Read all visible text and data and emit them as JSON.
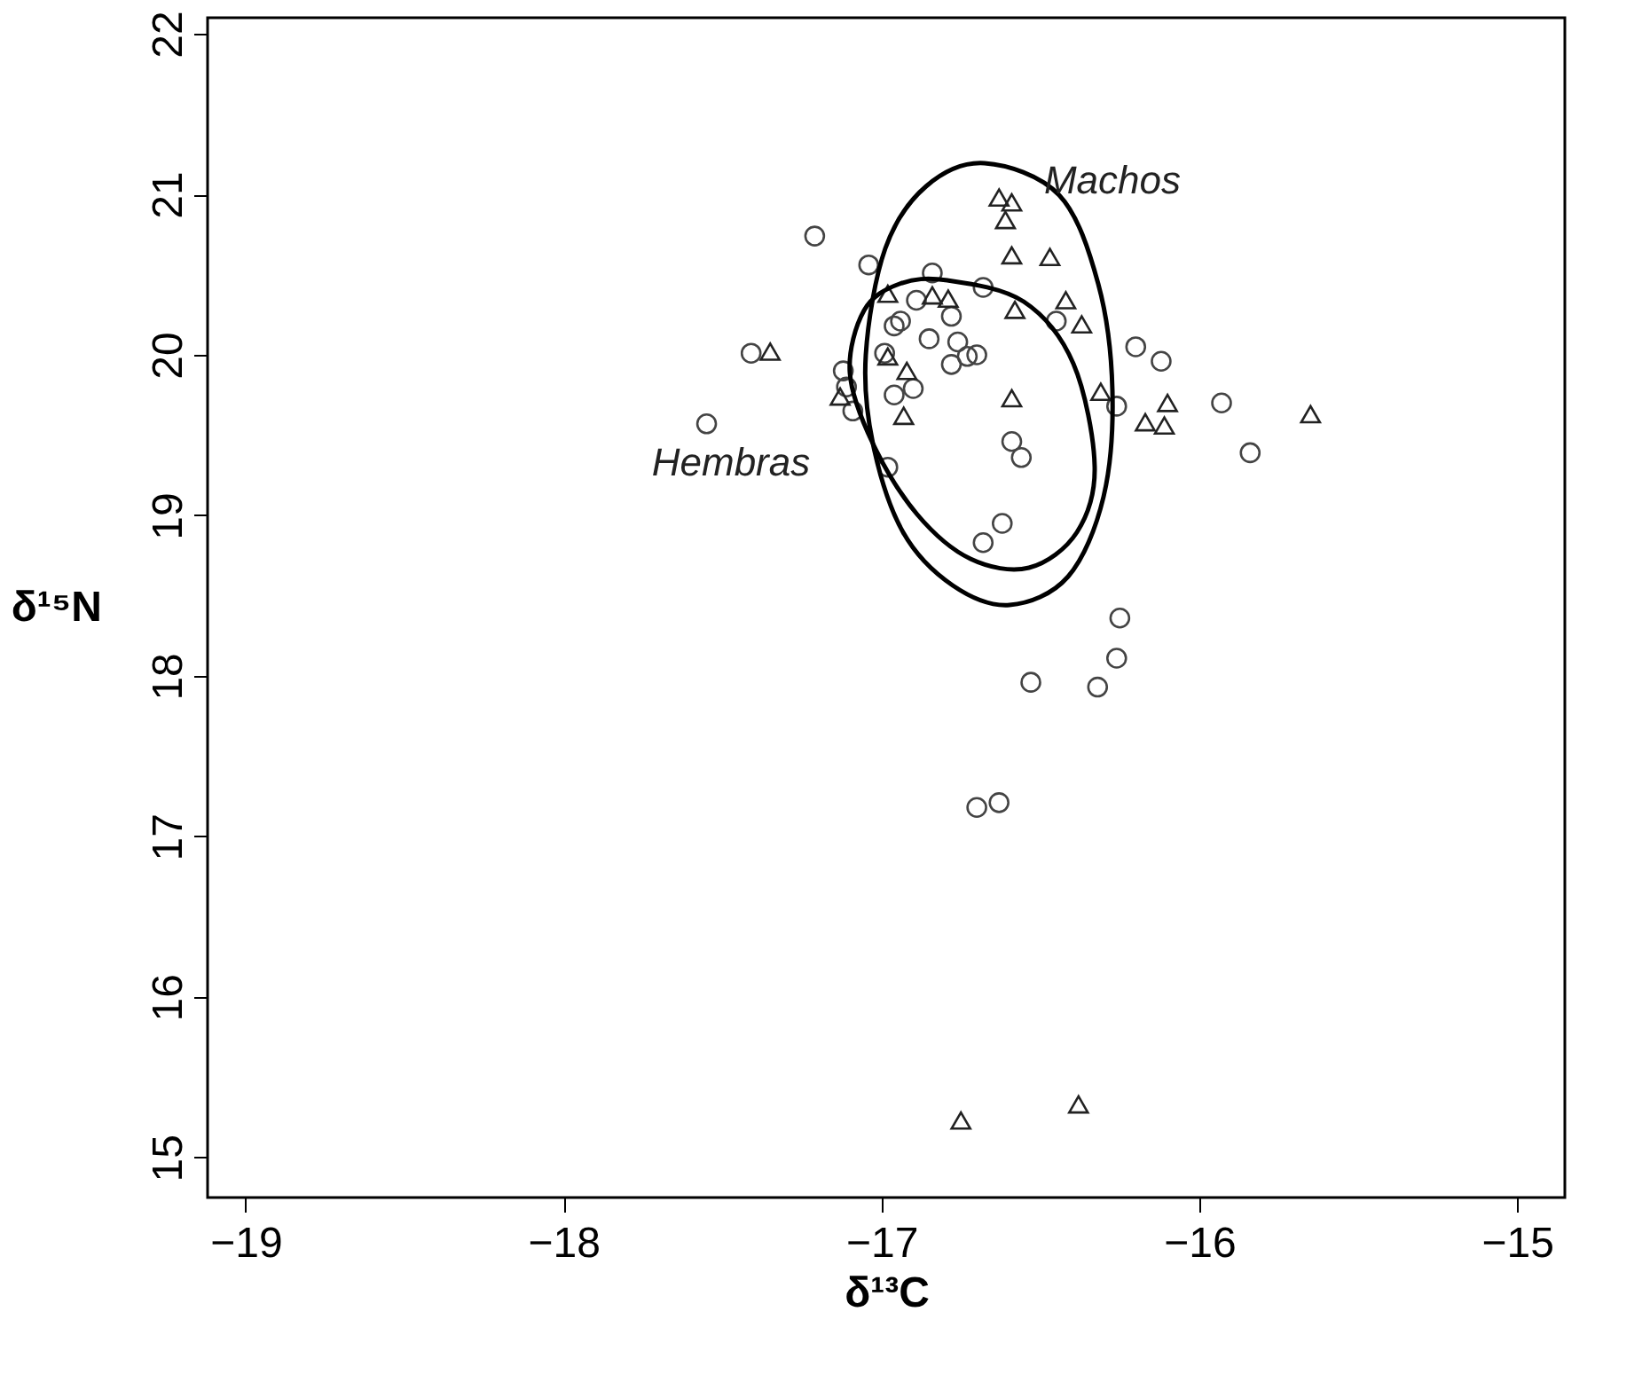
{
  "chart_data": {
    "type": "scatter",
    "xlabel": "δ¹³C",
    "ylabel": "δ¹⁵N",
    "xlim": [
      -19.12,
      -14.85
    ],
    "ylim": [
      14.75,
      22.1
    ],
    "xticks": [
      -19,
      -18,
      -17,
      -16,
      -15
    ],
    "yticks": [
      15,
      16,
      17,
      18,
      19,
      20,
      21,
      22
    ],
    "grid": false,
    "series": [
      {
        "marker": "circle",
        "color": "#444444",
        "x": [
          -17.21,
          -17.04,
          -16.84,
          -16.68,
          -17.41,
          -16.94,
          -16.96,
          -16.85,
          -16.76,
          -16.78,
          -16.73,
          -16.7,
          -17.12,
          -17.11,
          -17.09,
          -16.96,
          -16.9,
          -17.55,
          -16.59,
          -16.56,
          -16.98,
          -16.62,
          -16.68,
          -16.89,
          -16.78,
          -16.45,
          -16.2,
          -16.12,
          -16.26,
          -15.93,
          -15.84,
          -16.25,
          -16.26,
          -16.53,
          -16.32,
          -16.7,
          -16.63,
          -16.99
        ],
        "values": [
          20.74,
          20.56,
          20.51,
          20.42,
          20.01,
          20.21,
          20.18,
          20.1,
          20.08,
          19.94,
          19.99,
          20.0,
          19.9,
          19.8,
          19.65,
          19.75,
          19.79,
          19.57,
          19.46,
          19.36,
          19.3,
          18.95,
          18.83,
          20.34,
          20.24,
          20.21,
          20.05,
          19.96,
          19.68,
          19.7,
          19.39,
          18.36,
          18.11,
          17.96,
          17.93,
          17.18,
          17.21,
          20.01
        ]
      },
      {
        "marker": "triangle",
        "color": "#222222",
        "x": [
          -16.63,
          -16.59,
          -16.61,
          -16.59,
          -16.47,
          -16.84,
          -16.79,
          -16.58,
          -16.42,
          -16.37,
          -17.35,
          -16.98,
          -16.92,
          -17.13,
          -16.59,
          -16.93,
          -16.98,
          -16.31,
          -16.1,
          -16.17,
          -16.11,
          -15.65,
          -16.75,
          -16.38
        ],
        "values": [
          20.98,
          20.95,
          20.84,
          20.62,
          20.61,
          20.37,
          20.35,
          20.28,
          20.34,
          20.19,
          20.02,
          19.99,
          19.9,
          19.74,
          19.73,
          19.62,
          20.38,
          19.77,
          19.7,
          19.58,
          19.56,
          19.63,
          15.23,
          15.33
        ]
      }
    ],
    "annotations": [
      "Machos",
      "Hembras"
    ]
  }
}
